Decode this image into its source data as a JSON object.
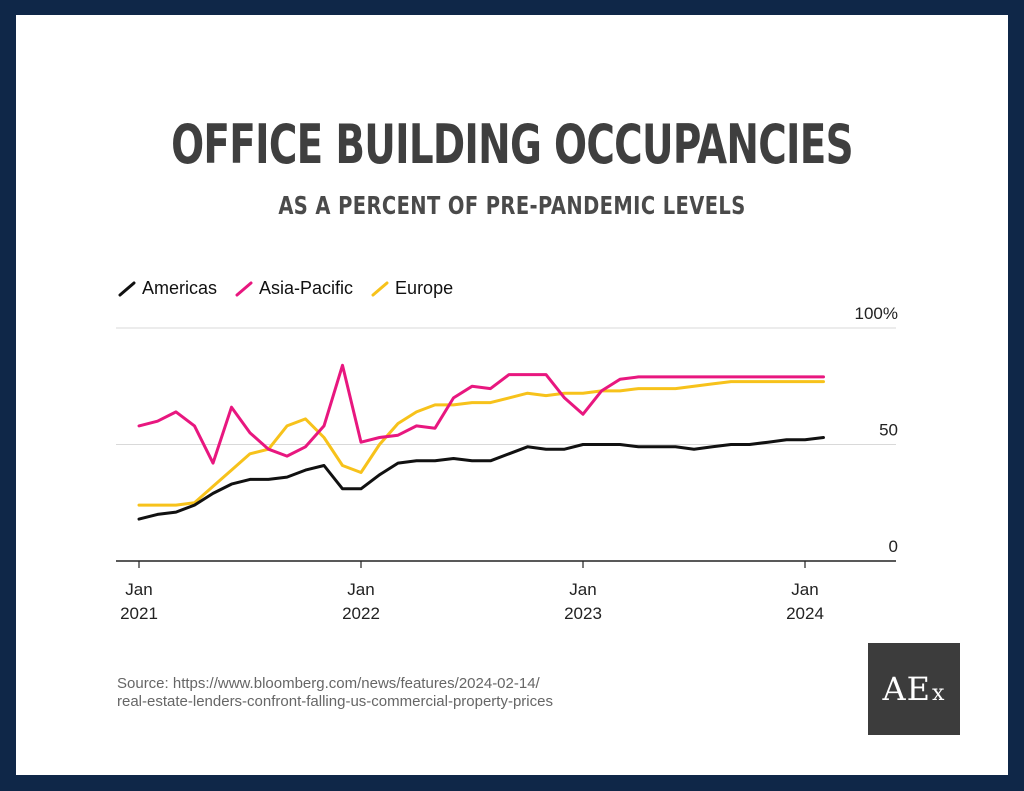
{
  "header": {
    "title": "OFFICE BUILDING OCCUPANCIES",
    "subtitle": "AS A PERCENT OF PRE-PANDEMIC LEVELS"
  },
  "source_text_1": "Source: https://www.bloomberg.com/news/features/2024-02-14/",
  "source_text_2": "real-estate-lenders-confront-falling-us-commercial-property-prices",
  "logo": {
    "main": "AE",
    "sub": "x"
  },
  "colors": {
    "frame": "#0f2748",
    "americas": "#111111",
    "asia": "#e8177f",
    "europe": "#f7c21b",
    "grid": "#d9d9d9"
  },
  "chart_data": {
    "type": "line",
    "title": "OFFICE BUILDING OCCUPANCIES",
    "subtitle": "AS A PERCENT OF PRE-PANDEMIC LEVELS",
    "ylim": [
      0,
      100
    ],
    "y_ticks": [
      "100%",
      "50",
      "0"
    ],
    "x_ticks": [
      {
        "month": "Jan",
        "year": "2021"
      },
      {
        "month": "Jan",
        "year": "2022"
      },
      {
        "month": "Jan",
        "year": "2023"
      },
      {
        "month": "Jan",
        "year": "2024"
      }
    ],
    "x_start": "2021-01",
    "x_end": "2024-02",
    "grid": true,
    "legend_position": "top-left",
    "series": [
      {
        "name": "Americas",
        "color": "#111111",
        "values": [
          18,
          20,
          21,
          24,
          29,
          33,
          35,
          35,
          36,
          39,
          41,
          31,
          31,
          37,
          42,
          43,
          43,
          44,
          43,
          43,
          46,
          49,
          48,
          48,
          50,
          50,
          50,
          49,
          49,
          49,
          48,
          49,
          50,
          50,
          51,
          52,
          52,
          53
        ]
      },
      {
        "name": "Asia-Pacific",
        "color": "#e8177f",
        "values": [
          58,
          60,
          64,
          58,
          42,
          66,
          55,
          48,
          45,
          49,
          58,
          84,
          51,
          53,
          54,
          58,
          57,
          70,
          75,
          74,
          80,
          80,
          80,
          70,
          63,
          73,
          78,
          79,
          79,
          79,
          79,
          79,
          79,
          79,
          79,
          79,
          79,
          79
        ]
      },
      {
        "name": "Europe",
        "color": "#f7c21b",
        "values": [
          24,
          24,
          24,
          25,
          32,
          39,
          46,
          48,
          58,
          61,
          53,
          41,
          38,
          50,
          59,
          64,
          67,
          67,
          68,
          68,
          70,
          72,
          71,
          72,
          72,
          73,
          73,
          74,
          74,
          74,
          75,
          76,
          77,
          77,
          77,
          77,
          77,
          77
        ]
      }
    ]
  }
}
